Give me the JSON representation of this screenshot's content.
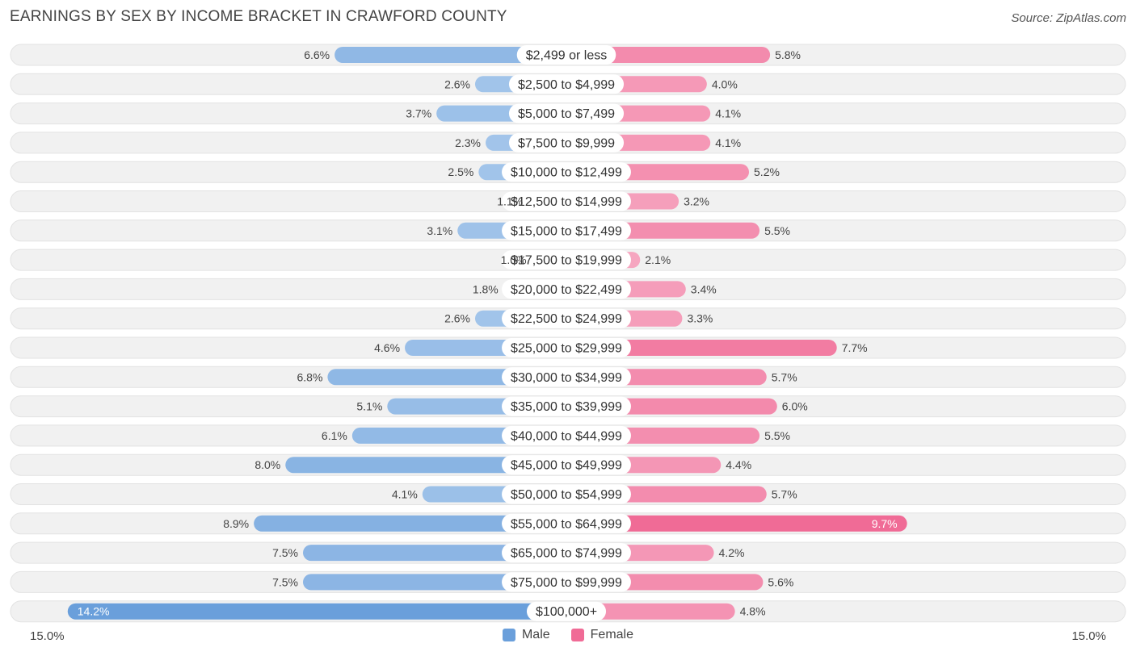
{
  "header": {
    "title": "EARNINGS BY SEX BY INCOME BRACKET IN CRAWFORD COUNTY",
    "source": "Source: ZipAtlas.com"
  },
  "colors": {
    "male_light": "#a9c9ec",
    "male_dark": "#6a9fdb",
    "female_light": "#f7b1c8",
    "female_dark": "#f06b96",
    "track": "#f1f1f1"
  },
  "legend": {
    "male": "Male",
    "female": "Female"
  },
  "axis": {
    "left_label": "15.0%",
    "right_label": "15.0%"
  },
  "chart_data": {
    "type": "bar",
    "title": "EARNINGS BY SEX BY INCOME BRACKET IN CRAWFORD COUNTY",
    "orientation": "horizontal-diverging",
    "xlim": [
      -15.0,
      15.0
    ],
    "categories": [
      "$2,499 or less",
      "$2,500 to $4,999",
      "$5,000 to $7,499",
      "$7,500 to $9,999",
      "$10,000 to $12,499",
      "$12,500 to $14,999",
      "$15,000 to $17,499",
      "$17,500 to $19,999",
      "$20,000 to $22,499",
      "$22,500 to $24,999",
      "$25,000 to $29,999",
      "$30,000 to $34,999",
      "$35,000 to $39,999",
      "$40,000 to $44,999",
      "$45,000 to $49,999",
      "$50,000 to $54,999",
      "$55,000 to $64,999",
      "$65,000 to $74,999",
      "$75,000 to $99,999",
      "$100,000+"
    ],
    "series": [
      {
        "name": "Male",
        "values": [
          6.6,
          2.6,
          3.7,
          2.3,
          2.5,
          1.1,
          3.1,
          1.0,
          1.8,
          2.6,
          4.6,
          6.8,
          5.1,
          6.1,
          8.0,
          4.1,
          8.9,
          7.5,
          7.5,
          14.2
        ]
      },
      {
        "name": "Female",
        "values": [
          5.8,
          4.0,
          4.1,
          4.1,
          5.2,
          3.2,
          5.5,
          2.1,
          3.4,
          3.3,
          7.7,
          5.7,
          6.0,
          5.5,
          4.4,
          5.7,
          9.7,
          4.2,
          5.6,
          4.8
        ]
      }
    ],
    "value_labels": {
      "male": [
        "6.6%",
        "2.6%",
        "3.7%",
        "2.3%",
        "2.5%",
        "1.1%",
        "3.1%",
        "1.0%",
        "1.8%",
        "2.6%",
        "4.6%",
        "6.8%",
        "5.1%",
        "6.1%",
        "8.0%",
        "4.1%",
        "8.9%",
        "7.5%",
        "7.5%",
        "14.2%"
      ],
      "female": [
        "5.8%",
        "4.0%",
        "4.1%",
        "4.1%",
        "5.2%",
        "3.2%",
        "5.5%",
        "2.1%",
        "3.4%",
        "3.3%",
        "7.7%",
        "5.7%",
        "6.0%",
        "5.5%",
        "4.4%",
        "5.7%",
        "9.7%",
        "4.2%",
        "5.6%",
        "4.8%"
      ]
    }
  }
}
